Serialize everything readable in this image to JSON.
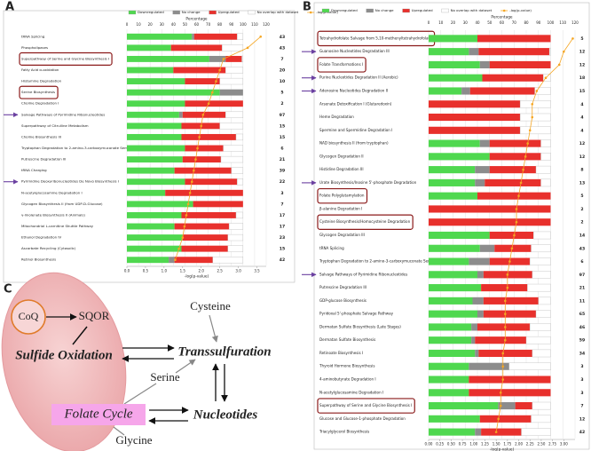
{
  "chart_data": [
    {
      "type": "bar",
      "panel": "A",
      "orientation": "horizontal",
      "categories": [
        "tRNA Splicing",
        "Phospholipases",
        "Superpathway of Serine and Glycine Biosynthesis I",
        "Fatty Acid α-oxidation",
        "Histamine Degradation",
        "Serine Biosynthesis",
        "Choline Degradation I",
        "Salvage Pathways of Pyrimidine Ribonucleotides",
        "Superpathway of Citrulline Metabolism",
        "Choline Biosynthesis III",
        "Tryptophan Degradation to 2-amino-3-carboxymuconate Semialdehyde",
        "Putrescine Degradation III",
        "tRNA Charging",
        "Pyrimidine Deoxyribonucleotides De Novo Biosynthesis I",
        "N-acetylglucosamine Degradation I",
        "Glycogen Biosynthesis II (from UDP-D-Glucose)",
        "γ-linolenate Biosynthesis II (Animals)",
        "Mitochondrial L-carnitine Shuttle Pathway",
        "Ethanol Degradation IV",
        "Ascorbate Recycling (Cytosolic)",
        "Retinol Biosynthesis"
      ],
      "counts": [
        43,
        43,
        7,
        20,
        10,
        5,
        2,
        97,
        15,
        15,
        6,
        21,
        39,
        22,
        3,
        7,
        17,
        17,
        23,
        15,
        42
      ],
      "series": [
        {
          "name": "Downregulated",
          "color": "#4fd84f",
          "values": [
            56,
            38,
            71,
            40,
            50,
            80,
            50,
            45,
            47,
            47,
            50,
            48,
            41,
            50,
            33,
            57,
            47,
            41,
            48,
            47,
            36
          ]
        },
        {
          "name": "No change",
          "color": "#8c8c8c",
          "values": [
            2,
            0,
            14,
            0,
            0,
            20,
            0,
            3,
            0,
            0,
            0,
            0,
            0,
            0,
            0,
            0,
            0,
            0,
            0,
            0,
            5
          ]
        },
        {
          "name": "Upregulated",
          "color": "#e8302c",
          "values": [
            37,
            44,
            14,
            45,
            30,
            0,
            50,
            37,
            33,
            47,
            33,
            33,
            49,
            45,
            67,
            43,
            47,
            47,
            39,
            40,
            33
          ]
        },
        {
          "name": "No overlap with dataset",
          "color": "#ffffff",
          "values": [
            5,
            18,
            1,
            15,
            20,
            0,
            0,
            15,
            20,
            6,
            17,
            19,
            10,
            5,
            0,
            0,
            6,
            12,
            13,
            13,
            26
          ]
        },
        {
          "name": "-log(p-value)",
          "color": "#f5a623",
          "axis": "x2",
          "values": [
            3.6,
            3.25,
            2.6,
            2.5,
            2.4,
            2.3,
            2.2,
            2.05,
            2.0,
            1.95,
            1.9,
            1.85,
            1.8,
            1.75,
            1.7,
            1.65,
            1.6,
            1.55,
            1.5,
            1.4,
            1.3
          ]
        }
      ],
      "xlabel": "Percentage",
      "xlim": [
        0,
        120
      ],
      "xticks": [
        0,
        10,
        20,
        30,
        40,
        50,
        60,
        70,
        80,
        90,
        100,
        110,
        120
      ],
      "x2label": "-log(p-value)",
      "x2lim": [
        0,
        3.75
      ],
      "x2ticks": [
        {
          "value": 0,
          "label": "0.0"
        },
        {
          "value": 0.5,
          "label": "0.5"
        },
        {
          "value": 1,
          "label": "1.0"
        },
        {
          "value": 1.5,
          "label": "1.5"
        },
        {
          "value": 2,
          "label": "2.0"
        },
        {
          "value": 2.5,
          "label": "2.5"
        },
        {
          "value": 3,
          "label": "3.0"
        },
        {
          "value": 3.5,
          "label": "3.5"
        }
      ],
      "highlight": [
        2,
        5
      ],
      "arrows": [
        7,
        13
      ],
      "grid": true
    },
    {
      "type": "bar",
      "panel": "B",
      "orientation": "horizontal",
      "categories": [
        "Tetrahydrofolate Salvage from 5,10-methenyltetrahydrofolate",
        "Guanosine Nucleotides Degradation III",
        "Folate Transformations I",
        "Purine Nucleotides Degradation II (Aerobic)",
        "Adenosine Nucleotides Degradation II",
        "Arsenate Detoxification I (Glutaredoxin)",
        "Heme Degradation",
        "Spermine and Spermidine Degradation I",
        "NAD biosynthesis II (from tryptophan)",
        "Glycogen Degradation II",
        "Histidine Degradation III",
        "Urate Biosynthesis/Inosine 5'-phosphate Degradation",
        "Folate Polyglutamylation",
        "β-alanine Degradation I",
        "Cysteine Biosynthesis/Homocysteine Degradation",
        "Glycogen Degradation III",
        "tRNA Splicing",
        "Tryptophan Degradation to 2-amino-3-carboxymuconate Semialdehyde",
        "Salvage Pathways of Pyrimidine Ribonucleotides",
        "Putrescine Degradation III",
        "GDP-glucose Biosynthesis",
        "Pyridoxal 5'-phosphate Salvage Pathway",
        "Dermatan Sulfate Biosynthesis (Late Stages)",
        "Dermatan Sulfate Biosynthesis",
        "Retinoate Biosynthesis I",
        "Thyroid Hormone Biosynthesis",
        "4-aminobutyrate Degradation I",
        "N-acetylglucosamine Degradation I",
        "Superpathway of Serine and Glycine Biosynthesis I",
        "Glucose and Glucose-1-phosphate Degradation",
        "Triacylglycerol Biosynthesis"
      ],
      "counts": [
        5,
        12,
        12,
        18,
        15,
        4,
        4,
        4,
        12,
        12,
        8,
        13,
        5,
        2,
        2,
        14,
        43,
        6,
        97,
        21,
        11,
        65,
        46,
        59,
        34,
        3,
        3,
        3,
        7,
        12,
        42
      ],
      "series": [
        {
          "name": "Downregulated",
          "color": "#4fd84f",
          "values": [
            40,
            33,
            42,
            44,
            27,
            0,
            0,
            0,
            42,
            50,
            38,
            38,
            40,
            0,
            0,
            50,
            42,
            33,
            40,
            43,
            36,
            40,
            35,
            35,
            38,
            33,
            33,
            33,
            57,
            42,
            38
          ]
        },
        {
          "name": "No change",
          "color": "#8c8c8c",
          "values": [
            0,
            8,
            8,
            0,
            7,
            0,
            0,
            0,
            8,
            0,
            12,
            8,
            0,
            0,
            0,
            0,
            12,
            17,
            5,
            0,
            9,
            5,
            5,
            3,
            3,
            33,
            0,
            0,
            14,
            0,
            5
          ]
        },
        {
          "name": "Upregulated",
          "color": "#e8302c",
          "values": [
            60,
            58,
            50,
            50,
            53,
            75,
            75,
            75,
            42,
            42,
            38,
            46,
            60,
            100,
            100,
            36,
            30,
            33,
            40,
            38,
            45,
            43,
            43,
            42,
            44,
            0,
            67,
            67,
            14,
            42,
            33
          ]
        },
        {
          "name": "No overlap with dataset",
          "color": "#ffffff",
          "values": [
            0,
            1,
            0,
            6,
            13,
            25,
            25,
            25,
            8,
            8,
            12,
            8,
            0,
            0,
            0,
            14,
            16,
            17,
            15,
            19,
            10,
            12,
            17,
            20,
            15,
            34,
            0,
            0,
            15,
            16,
            24
          ]
        },
        {
          "name": "-log(p-value)",
          "color": "#f5a623",
          "axis": "x2",
          "values": [
            3.2,
            3.0,
            2.9,
            2.6,
            2.4,
            2.3,
            2.3,
            2.25,
            2.2,
            2.15,
            2.1,
            2.05,
            2.0,
            1.95,
            1.95,
            1.9,
            1.85,
            1.8,
            1.75,
            1.75,
            1.7,
            1.7,
            1.7,
            1.7,
            1.65,
            1.65,
            1.65,
            1.6,
            1.6,
            1.55,
            1.5
          ]
        }
      ],
      "xlabel": "Percentage",
      "xlim": [
        0,
        120
      ],
      "xticks": [
        0,
        10,
        20,
        30,
        40,
        50,
        60,
        70,
        80,
        90,
        100,
        110,
        120
      ],
      "x2label": "-log(p-value)",
      "x2lim": [
        0,
        3.25
      ],
      "x2ticks": [
        {
          "value": 0,
          "label": "0.00"
        },
        {
          "value": 0.25,
          "label": "0.25"
        },
        {
          "value": 0.5,
          "label": "0.50"
        },
        {
          "value": 0.75,
          "label": "0.75"
        },
        {
          "value": 1,
          "label": "1.00"
        },
        {
          "value": 1.25,
          "label": "1.25"
        },
        {
          "value": 1.5,
          "label": "1.50"
        },
        {
          "value": 1.75,
          "label": "1.75"
        },
        {
          "value": 2,
          "label": "2.00"
        },
        {
          "value": 2.25,
          "label": "2.25"
        },
        {
          "value": 2.5,
          "label": "2.50"
        },
        {
          "value": 2.75,
          "label": "2.75"
        },
        {
          "value": 3,
          "label": "3.00"
        }
      ],
      "highlight": [
        0,
        2,
        12,
        14,
        28
      ],
      "arrows": [
        1,
        3,
        4,
        11,
        18
      ],
      "grid": true
    }
  ],
  "diagram": {
    "panel": "C",
    "nodes": [
      "CoQ",
      "SQOR",
      "Sulfide Oxidation",
      "Cysteine",
      "Transsulfuration",
      "Serine",
      "Folate Cycle",
      "Nucleotides",
      "Glycine"
    ]
  }
}
